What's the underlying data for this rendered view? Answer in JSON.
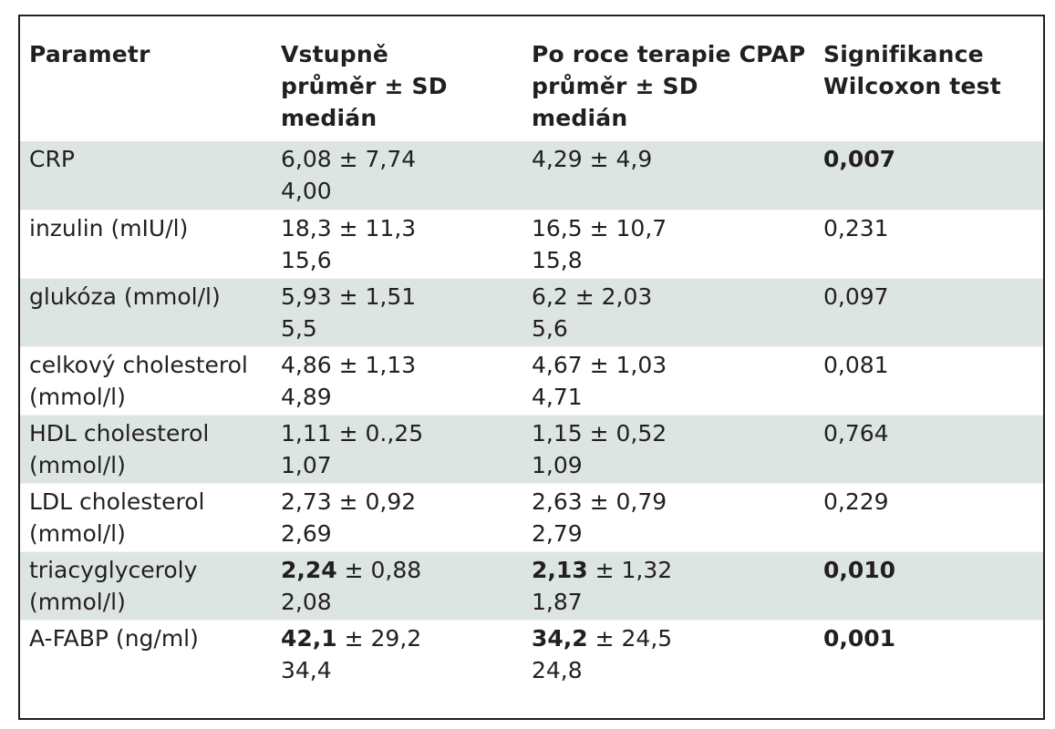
{
  "headers": [
    {
      "lines": [
        "Parametr"
      ]
    },
    {
      "lines": [
        "Vstupně",
        "průměr ± SD",
        "medián"
      ]
    },
    {
      "lines": [
        "Po roce terapie CPAP",
        "průměr ± SD",
        "medián"
      ]
    },
    {
      "lines": [
        "Signifikance",
        "Wilcoxon test"
      ]
    }
  ],
  "rows": [
    {
      "param": [
        "CRP"
      ],
      "baseline_mean": "6,08",
      "baseline_rest": " ± 7,74",
      "baseline_median": "4,00",
      "baseline_bold": false,
      "cpap_mean": "4,29",
      "cpap_rest": " ± 4,9",
      "cpap_median": "",
      "cpap_bold": false,
      "significance": "0,007",
      "sig_bold": true,
      "shaded": true
    },
    {
      "param": [
        "inzulin (mIU/l)"
      ],
      "baseline_mean": "18,3",
      "baseline_rest": " ± 11,3",
      "baseline_median": "15,6",
      "baseline_bold": false,
      "cpap_mean": "16,5",
      "cpap_rest": " ± 10,7",
      "cpap_median": "15,8",
      "cpap_bold": false,
      "significance": "0,231",
      "sig_bold": false,
      "shaded": false
    },
    {
      "param": [
        "glukóza (mmol/l)"
      ],
      "baseline_mean": "5,93",
      "baseline_rest": " ± 1,51",
      "baseline_median": "5,5",
      "baseline_bold": false,
      "cpap_mean": "6,2",
      "cpap_rest": " ± 2,03",
      "cpap_median": "5,6",
      "cpap_bold": false,
      "significance": "0,097",
      "sig_bold": false,
      "shaded": true
    },
    {
      "param": [
        "celkový cholesterol",
        "(mmol/l)"
      ],
      "baseline_mean": "4,86",
      "baseline_rest": " ± 1,13",
      "baseline_median": "4,89",
      "baseline_bold": false,
      "cpap_mean": "4,67",
      "cpap_rest": " ± 1,03",
      "cpap_median": "4,71",
      "cpap_bold": false,
      "significance": "0,081",
      "sig_bold": false,
      "shaded": false
    },
    {
      "param": [
        "HDL cholesterol",
        "(mmol/l)"
      ],
      "baseline_mean": "1,11",
      "baseline_rest": " ± 0.,25",
      "baseline_median": "1,07",
      "baseline_bold": false,
      "cpap_mean": "1,15",
      "cpap_rest": " ± 0,52",
      "cpap_median": "1,09",
      "cpap_bold": false,
      "significance": "0,764",
      "sig_bold": false,
      "shaded": true
    },
    {
      "param": [
        "LDL cholesterol",
        "(mmol/l)"
      ],
      "baseline_mean": "2,73",
      "baseline_rest": " ± 0,92",
      "baseline_median": "2,69",
      "baseline_bold": false,
      "cpap_mean": "2,63",
      "cpap_rest": " ± 0,79",
      "cpap_median": "2,79",
      "cpap_bold": false,
      "significance": "0,229",
      "sig_bold": false,
      "shaded": false
    },
    {
      "param": [
        "triacyglyceroly",
        "(mmol/l)"
      ],
      "baseline_mean": "2,24",
      "baseline_rest": " ± 0,88",
      "baseline_median": "2,08",
      "baseline_bold": true,
      "cpap_mean": "2,13",
      "cpap_rest": " ± 1,32",
      "cpap_median": "1,87",
      "cpap_bold": true,
      "significance": "0,010",
      "sig_bold": true,
      "shaded": true
    },
    {
      "param": [
        "A-FABP (ng/ml)"
      ],
      "baseline_mean": "42,1",
      "baseline_rest": " ± 29,2",
      "baseline_median": "34,4",
      "baseline_bold": true,
      "cpap_mean": "34,2",
      "cpap_rest": " ± 24,5",
      "cpap_median": "24,8",
      "cpap_bold": true,
      "significance": "0,001",
      "sig_bold": true,
      "shaded": false
    }
  ],
  "colors": {
    "text": "#231f20",
    "shade": "#dde5e3",
    "border": "#231f20"
  }
}
